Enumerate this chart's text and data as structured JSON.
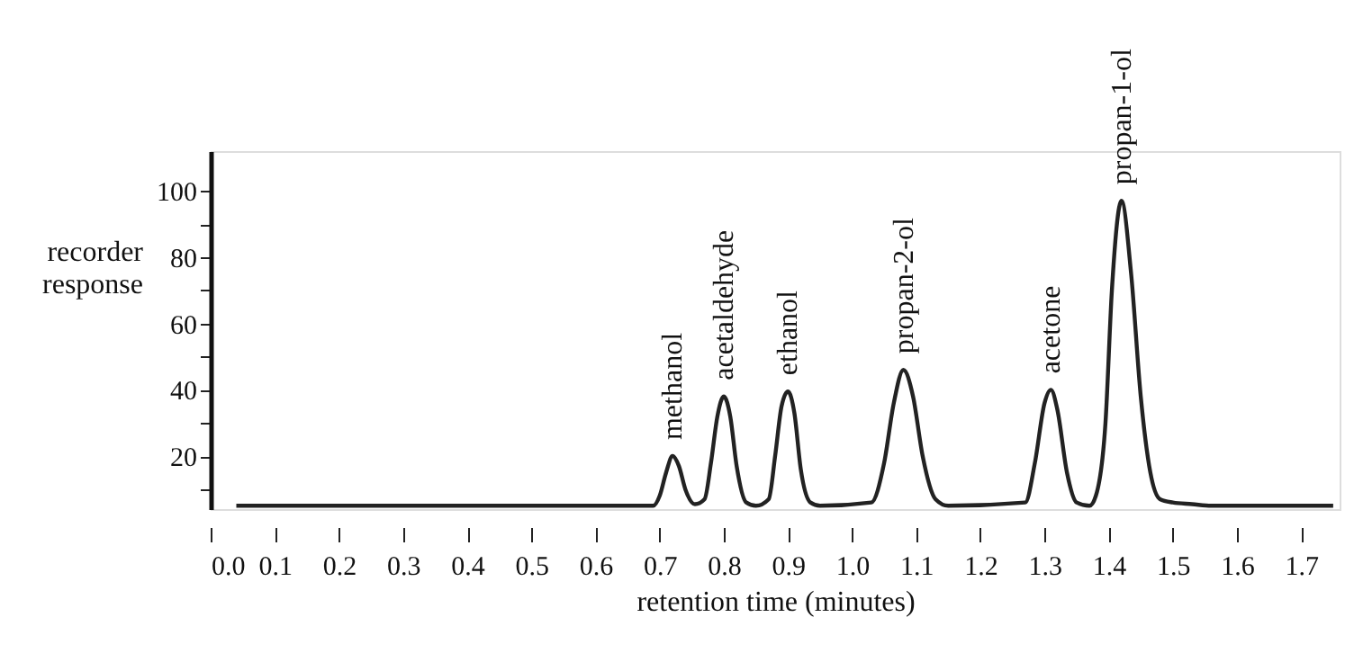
{
  "chart_data": {
    "type": "line",
    "xlabel": "retention time (minutes)",
    "ylabel": "recorder\nresponse",
    "xlim": [
      0,
      1.76
    ],
    "ylim": [
      4,
      112
    ],
    "xticks": [
      {
        "value": 0,
        "label": "0.0"
      },
      0.1,
      0.2,
      0.3,
      0.4,
      0.5,
      0.6,
      0.7,
      0.8,
      0.9,
      {
        "value": 1,
        "label": "1.0"
      },
      1.1,
      1.2,
      1.3,
      1.4,
      1.5,
      1.6,
      1.7
    ],
    "yticks": [
      {
        "value": 10,
        "label": null
      },
      20,
      {
        "value": 30,
        "label": null
      },
      40,
      {
        "value": 50,
        "label": null
      },
      60,
      {
        "value": 70,
        "label": null
      },
      80,
      {
        "value": 90,
        "label": null
      },
      100
    ],
    "grid": false,
    "legend": false,
    "marker": "none",
    "line_style": "solid",
    "series": [
      {
        "color": "#222222",
        "x": [
          0.04,
          0.69,
          0.7,
          0.71,
          0.72,
          0.73,
          0.74,
          0.755,
          0.77,
          0.78,
          0.79,
          0.8,
          0.81,
          0.82,
          0.835,
          0.85,
          0.87,
          0.88,
          0.89,
          0.9,
          0.91,
          0.92,
          0.935,
          0.95,
          1.03,
          1.05,
          1.065,
          1.08,
          1.095,
          1.11,
          1.13,
          1.15,
          1.27,
          1.285,
          1.3,
          1.31,
          1.32,
          1.335,
          1.35,
          1.37,
          1.38,
          1.395,
          1.405,
          1.42,
          1.435,
          1.45,
          1.465,
          1.48,
          1.5,
          1.53,
          1.56,
          1.75
        ],
        "values": [
          5,
          5,
          8,
          15,
          20,
          17,
          10,
          5.5,
          7,
          18,
          32,
          38,
          32,
          17,
          6,
          5,
          7,
          20,
          35,
          39.5,
          33,
          16,
          6,
          5,
          6,
          18,
          36,
          46,
          38,
          20,
          7,
          5,
          6,
          18,
          36,
          40,
          34,
          15,
          6,
          5,
          8,
          30,
          70,
          97,
          75,
          38,
          15,
          7,
          6,
          5.5,
          5,
          5
        ]
      }
    ],
    "annotations": [
      {
        "text": "methanol",
        "x": 0.72,
        "y": 20
      },
      {
        "text": "acetaldehyde",
        "x": 0.8,
        "y": 38
      },
      {
        "text": "ethanol",
        "x": 0.9,
        "y": 39.5
      },
      {
        "text": "propan-2-ol",
        "x": 1.08,
        "y": 46
      },
      {
        "text": "acetone",
        "x": 1.31,
        "y": 40
      },
      {
        "text": "propan-1-ol",
        "x": 1.42,
        "y": 97
      }
    ]
  }
}
